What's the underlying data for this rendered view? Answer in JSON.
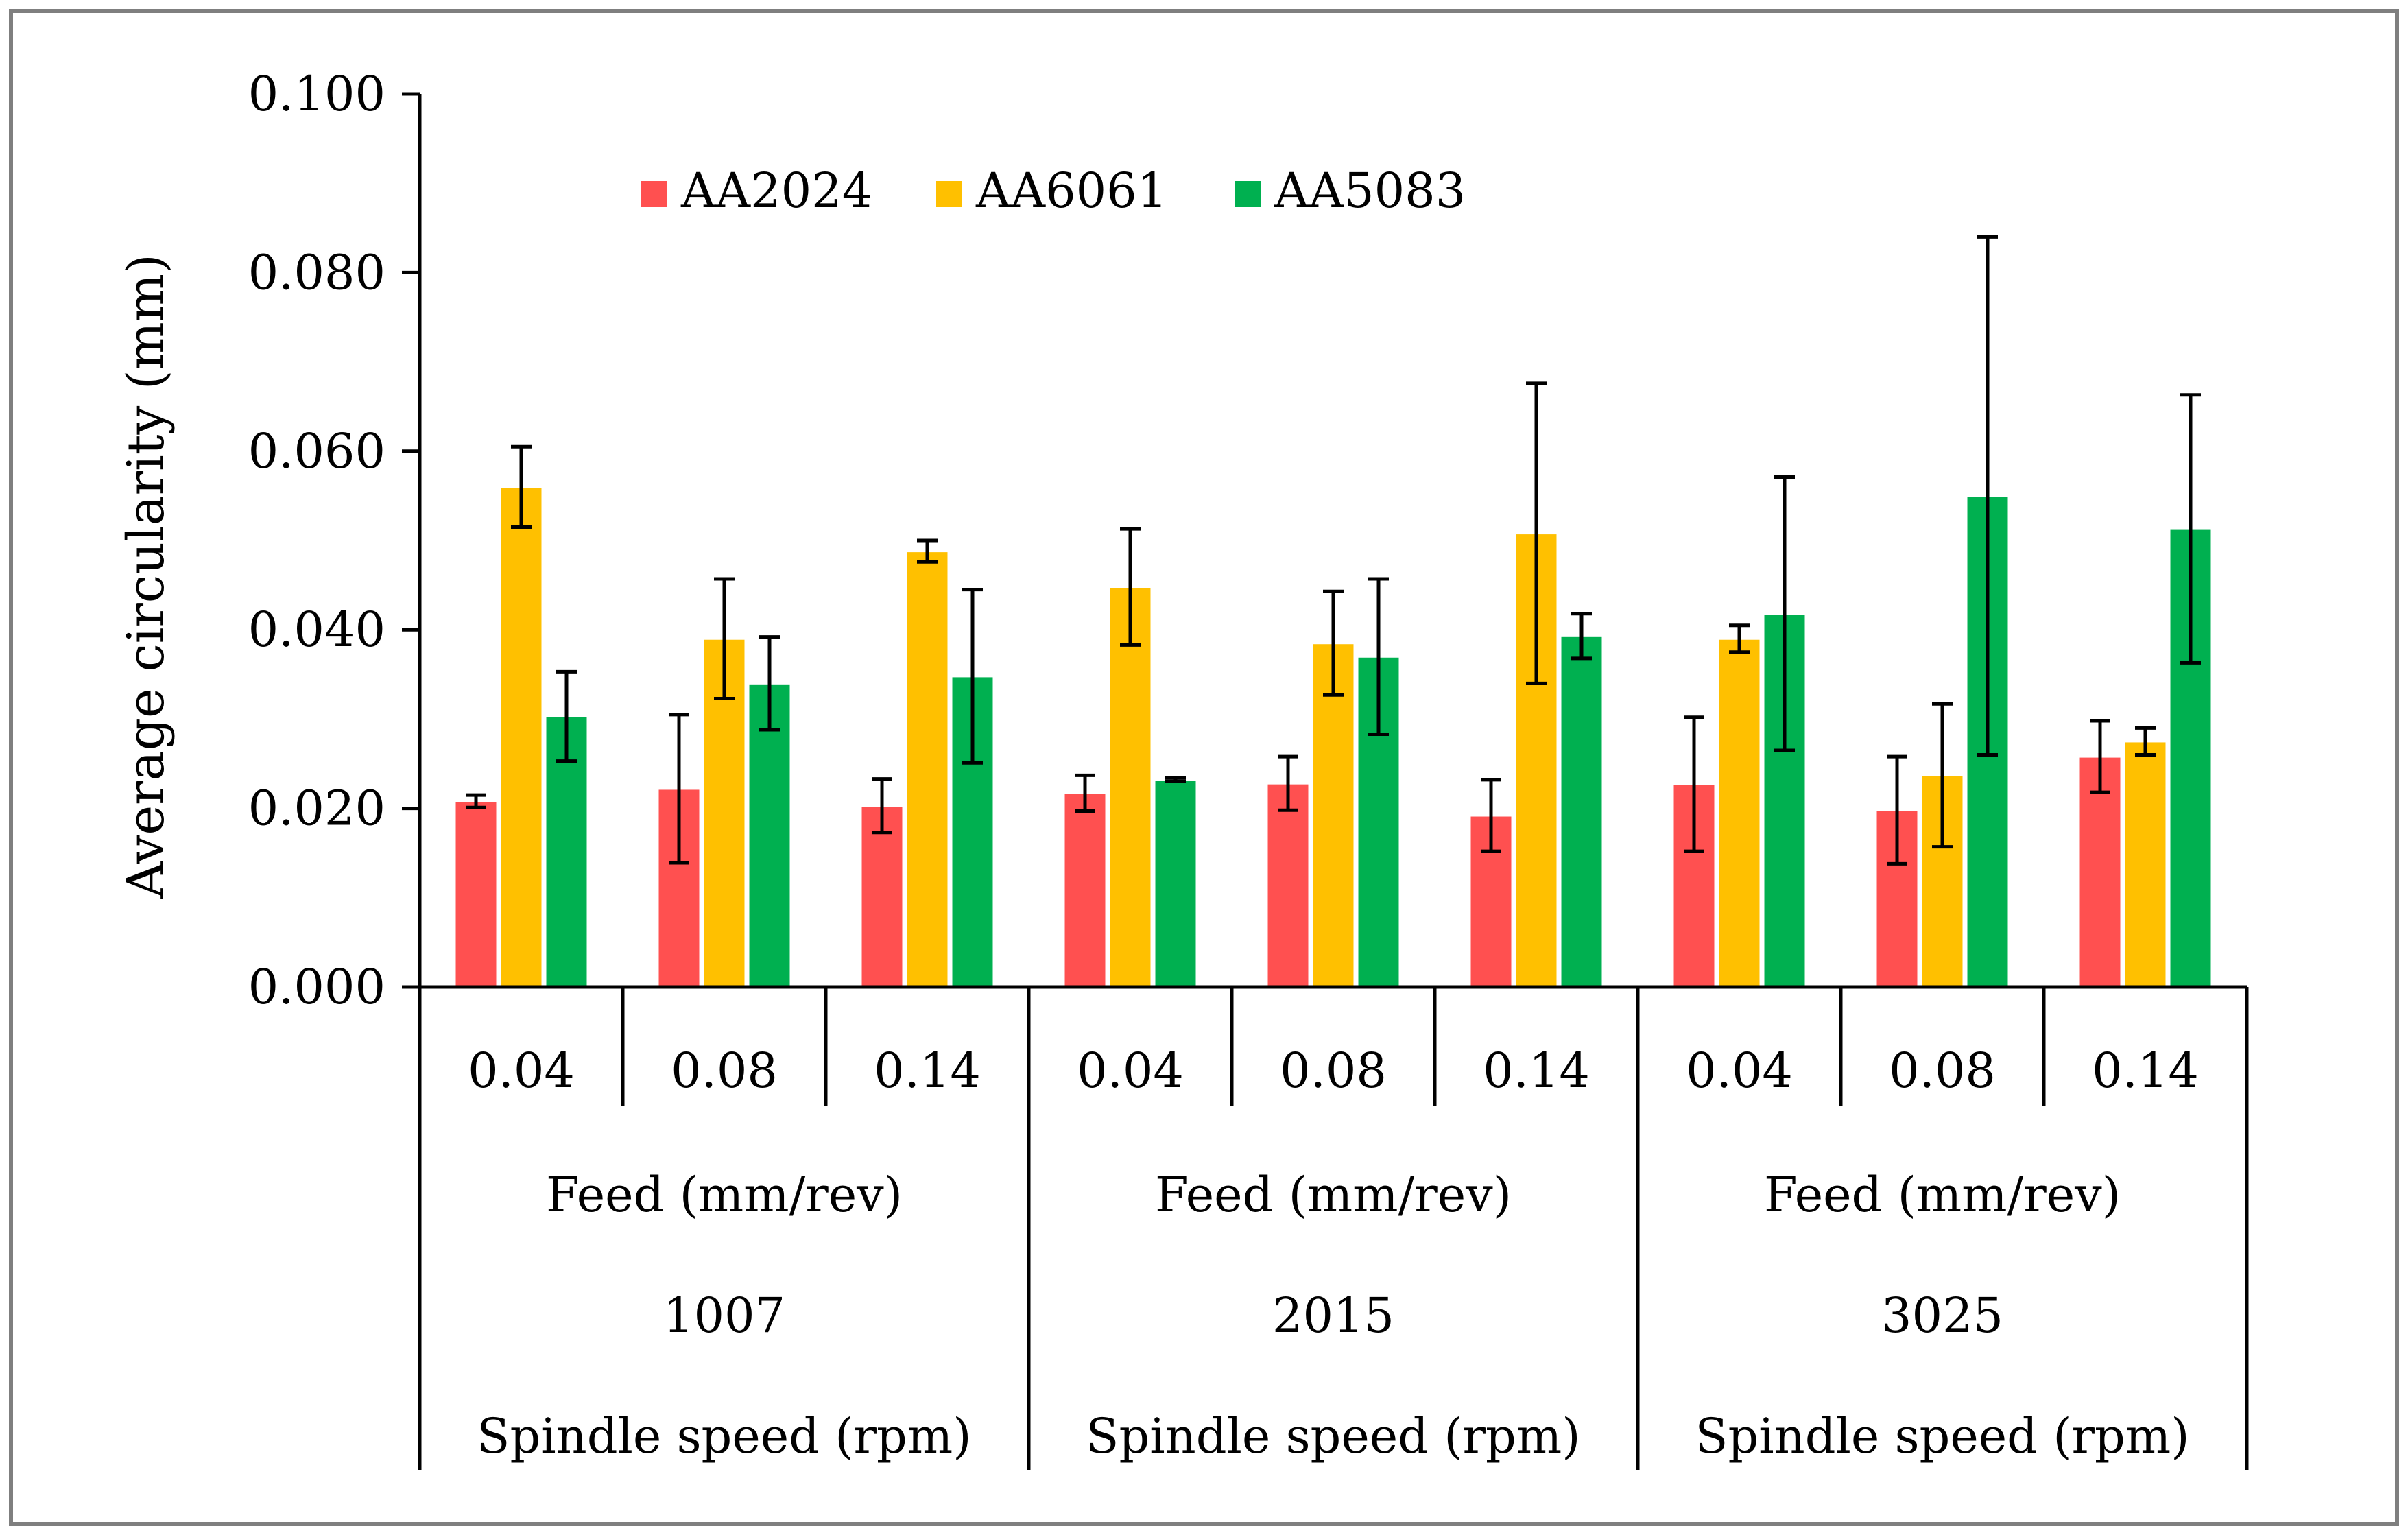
{
  "chart_data": {
    "type": "bar",
    "ylabel": "Average circularity  (mm)",
    "ylim": [
      0,
      0.1
    ],
    "yticks": [
      "0.000",
      "0.020",
      "0.040",
      "0.060",
      "0.080",
      "0.100"
    ],
    "grid": false,
    "legend_position": "top-left",
    "groups": [
      {
        "spindle_speed": "1007",
        "speed_label": "Spindle speed (rpm)",
        "feed_label": "Feed (mm/rev)",
        "feeds": [
          "0.04",
          "0.08",
          "0.14"
        ]
      },
      {
        "spindle_speed": "2015",
        "speed_label": "Spindle speed (rpm)",
        "feed_label": "Feed (mm/rev)",
        "feeds": [
          "0.04",
          "0.08",
          "0.14"
        ]
      },
      {
        "spindle_speed": "3025",
        "speed_label": "Spindle speed (rpm)",
        "feed_label": "Feed (mm/rev)",
        "feeds": [
          "0.04",
          "0.08",
          "0.14"
        ]
      }
    ],
    "series": [
      {
        "name": "AA2024",
        "color": "#FF5050",
        "values": [
          0.0208,
          0.0222,
          0.0203,
          0.0217,
          0.0228,
          0.0192,
          0.0227,
          0.0198,
          0.0258
        ],
        "errors": [
          0.0007,
          0.0083,
          0.003,
          0.002,
          0.003,
          0.004,
          0.0075,
          0.006,
          0.004
        ]
      },
      {
        "name": "AA6061",
        "color": "#FFC000",
        "values": [
          0.056,
          0.039,
          0.0488,
          0.0448,
          0.0385,
          0.0508,
          0.039,
          0.0237,
          0.0275
        ],
        "errors": [
          0.0045,
          0.0067,
          0.0012,
          0.0065,
          0.0058,
          0.0168,
          0.0015,
          0.008,
          0.0015
        ]
      },
      {
        "name": "AA5083",
        "color": "#00B050",
        "values": [
          0.0303,
          0.034,
          0.0348,
          0.0232,
          0.037,
          0.0393,
          0.0418,
          0.055,
          0.0513
        ],
        "errors": [
          0.005,
          0.0052,
          0.0097,
          0.0002,
          0.0087,
          0.0025,
          0.0153,
          0.029,
          0.015
        ]
      }
    ]
  }
}
